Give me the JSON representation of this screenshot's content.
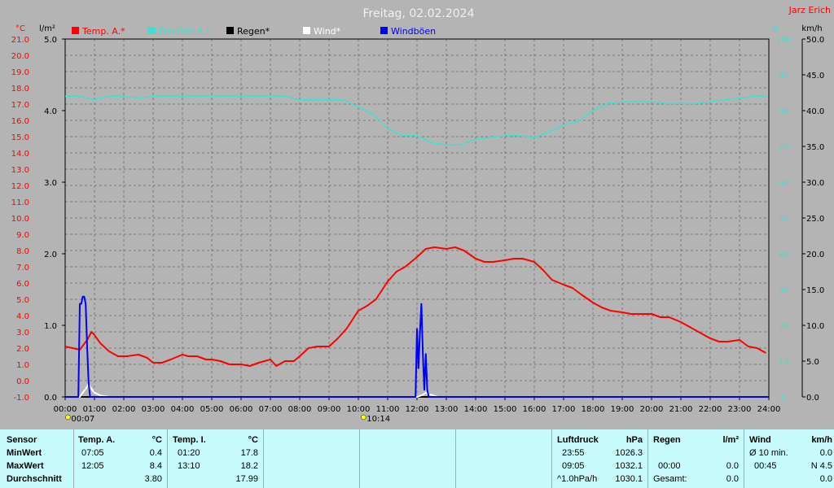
{
  "header": {
    "title": "Freitag, 02.02.2024",
    "owner": "Jarz Erich"
  },
  "colors": {
    "temp": "#ff0000",
    "humidity": "#40e0d0",
    "rain": "#000000",
    "wind": "#ffffff",
    "gust": "#0000ff",
    "left_axis": "#ff0000",
    "hum_axis": "#40e0d0",
    "grid": "#7a7a7a",
    "plot_bg": "#b4b4b4"
  },
  "chart_data": {
    "type": "line",
    "title": "Freitag, 02.02.2024",
    "grid": true,
    "legend_position": "top-left",
    "x_ticks": [
      "00:00",
      "01:00",
      "02:00",
      "03:00",
      "04:00",
      "05:00",
      "06:00",
      "07:00",
      "08:00",
      "09:00",
      "10:00",
      "11:00",
      "12:00",
      "13:00",
      "14:00",
      "15:00",
      "16:00",
      "17:00",
      "18:00",
      "19:00",
      "20:00",
      "21:00",
      "22:00",
      "23:00",
      "24:00"
    ],
    "x_range": [
      0,
      24
    ],
    "axes": {
      "temp": {
        "unit": "°C",
        "range": [
          -1.0,
          21.0
        ],
        "ticks": [
          "-1.0",
          "0.0",
          "1.0",
          "2.0",
          "3.0",
          "4.0",
          "5.0",
          "6.0",
          "7.0",
          "8.0",
          "9.0",
          "10.0",
          "11.0",
          "12.0",
          "13.0",
          "14.0",
          "15.0",
          "16.0",
          "17.0",
          "18.0",
          "19.0",
          "20.0",
          "21.0"
        ]
      },
      "rain": {
        "unit": "l/m²",
        "range": [
          0.0,
          5.0
        ],
        "ticks": [
          "0.0",
          "1.0",
          "2.0",
          "3.0",
          "4.0",
          "5.0"
        ]
      },
      "humidity": {
        "unit": "%",
        "range": [
          0,
          100
        ],
        "ticks": [
          "0",
          "10",
          "20",
          "30",
          "40",
          "50",
          "60",
          "70",
          "80",
          "90",
          "100"
        ]
      },
      "wind": {
        "unit": "km/h",
        "range": [
          0.0,
          50.0
        ],
        "ticks": [
          "0.0",
          "5.0",
          "10.0",
          "15.0",
          "20.0",
          "25.0",
          "30.0",
          "35.0",
          "40.0",
          "45.0",
          "50.0"
        ]
      }
    },
    "series": [
      {
        "name": "Temp. A.*",
        "axis": "temp",
        "color": "#ff0000",
        "x": [
          0,
          0.25,
          0.5,
          0.75,
          0.9,
          1.0,
          1.2,
          1.5,
          1.8,
          2.1,
          2.5,
          2.8,
          3.0,
          3.3,
          3.6,
          4.0,
          4.2,
          4.5,
          4.8,
          5.0,
          5.3,
          5.6,
          6.0,
          6.3,
          6.6,
          7.0,
          7.2,
          7.5,
          7.8,
          8.0,
          8.3,
          8.6,
          9.0,
          9.3,
          9.6,
          10.0,
          10.3,
          10.6,
          11.0,
          11.3,
          11.6,
          12.0,
          12.3,
          12.6,
          13.0,
          13.3,
          13.6,
          14.0,
          14.3,
          14.6,
          15.0,
          15.3,
          15.6,
          16.0,
          16.3,
          16.6,
          17.0,
          17.3,
          17.6,
          18.0,
          18.3,
          18.6,
          19.0,
          19.3,
          19.6,
          20.0,
          20.3,
          20.6,
          21.0,
          21.3,
          21.6,
          22.0,
          22.3,
          22.6,
          23.0,
          23.3,
          23.6,
          23.9
        ],
        "y": [
          2.1,
          2.0,
          1.9,
          2.5,
          3.0,
          2.8,
          2.3,
          1.8,
          1.5,
          1.5,
          1.6,
          1.4,
          1.1,
          1.1,
          1.3,
          1.6,
          1.5,
          1.5,
          1.3,
          1.3,
          1.2,
          1.0,
          1.0,
          0.9,
          1.1,
          1.3,
          0.9,
          1.2,
          1.2,
          1.5,
          2.0,
          2.1,
          2.1,
          2.6,
          3.2,
          4.3,
          4.6,
          5.0,
          6.1,
          6.7,
          7.0,
          7.6,
          8.1,
          8.2,
          8.1,
          8.2,
          8.0,
          7.5,
          7.3,
          7.3,
          7.4,
          7.5,
          7.5,
          7.3,
          6.8,
          6.2,
          5.9,
          5.7,
          5.3,
          4.8,
          4.5,
          4.3,
          4.2,
          4.1,
          4.1,
          4.1,
          3.9,
          3.9,
          3.6,
          3.3,
          3.0,
          2.6,
          2.4,
          2.4,
          2.5,
          2.1,
          2.0,
          1.7
        ]
      },
      {
        "name": "Feuchte A.*",
        "axis": "humidity",
        "color": "#40e0d0",
        "x": [
          0,
          0.5,
          1.0,
          1.5,
          2.0,
          2.5,
          3.0,
          3.5,
          4.0,
          5.0,
          6.0,
          7.0,
          7.5,
          8.0,
          8.5,
          9.0,
          9.5,
          10.0,
          10.5,
          11.0,
          11.5,
          12.0,
          12.5,
          13.0,
          13.5,
          14.0,
          14.5,
          15.0,
          15.5,
          16.0,
          16.5,
          17.0,
          17.5,
          18.0,
          18.5,
          19.0,
          19.5,
          20.0,
          20.5,
          21.0,
          21.5,
          22.0,
          22.5,
          23.0,
          23.5,
          23.9
        ],
        "y": [
          84,
          84,
          83,
          84,
          84,
          83.5,
          84,
          84,
          84,
          84,
          84,
          84,
          84,
          83,
          83,
          83,
          83,
          81,
          79,
          75,
          73,
          73,
          71,
          70.5,
          70.5,
          72,
          72.5,
          73,
          73,
          72.5,
          74,
          76,
          77,
          80,
          82,
          82.5,
          82.5,
          82.5,
          82,
          82,
          82,
          82.5,
          83,
          83.5,
          84,
          84
        ]
      },
      {
        "name": "Regen*",
        "axis": "rain",
        "color": "#000000",
        "x": [
          0,
          24
        ],
        "y": [
          0,
          0
        ]
      },
      {
        "name": "Wind*",
        "axis": "wind",
        "color": "#ffffff",
        "x": [
          0,
          0.5,
          0.6,
          0.7,
          0.8,
          0.9,
          1.0,
          1.2,
          1.5,
          12.0,
          12.2,
          12.3,
          12.4,
          12.5,
          12.7,
          24
        ],
        "y": [
          0,
          0,
          0.6,
          1.1,
          1.8,
          1.1,
          0.6,
          0.2,
          0,
          0,
          0.3,
          0.6,
          0.3,
          0.3,
          0,
          0
        ]
      },
      {
        "name": "Windböen",
        "axis": "wind",
        "color": "#0000ff",
        "x": [
          0,
          0.45,
          0.5,
          0.55,
          0.6,
          0.65,
          0.7,
          0.75,
          0.8,
          0.85,
          1.0,
          11.95,
          12.0,
          12.05,
          12.1,
          12.15,
          12.2,
          12.25,
          12.3,
          12.35,
          12.4,
          12.45,
          12.5,
          24
        ],
        "y": [
          0,
          0,
          13.0,
          13.0,
          14.0,
          14.0,
          13.0,
          7.0,
          2.0,
          0,
          0,
          0,
          9.5,
          4.0,
          9.0,
          13.0,
          6.0,
          1.0,
          6.0,
          1.0,
          0,
          0,
          0,
          0
        ]
      }
    ],
    "annotations": [
      {
        "x": 0.15,
        "label": "00:07"
      },
      {
        "x": 10.23,
        "label": "10:14"
      }
    ]
  },
  "stats": {
    "sensor": {
      "header": "Sensor",
      "rows": [
        "MinWert",
        "MaxWert",
        "Durchschnitt"
      ]
    },
    "temp_a": {
      "header": "Temp. A.",
      "unit": "°C",
      "min_time": "07:05",
      "min_val": "0.4",
      "max_time": "12:05",
      "max_val": "8.4",
      "avg": "3.80"
    },
    "temp_i": {
      "header": "Temp. I.",
      "unit": "°C",
      "min_time": "01:20",
      "min_val": "17.8",
      "max_time": "13:10",
      "max_val": "18.2",
      "avg": "17.99"
    },
    "pressure": {
      "header": "Luftdruck",
      "unit": "hPa",
      "min_time": "23:55",
      "min_val": "1026.3",
      "max_time": "09:05",
      "max_val": "1032.1",
      "trend_label": "^1.0hPa/h",
      "trend_val": "1030.1"
    },
    "rain": {
      "header": "Regen",
      "unit": "l/m²",
      "max_time": "00:00",
      "max_val": "0.0",
      "total_label": "Gesamt:",
      "total_val": "0.0"
    },
    "wind": {
      "header": "Wind",
      "unit": "km/h",
      "avg_label": "Ø 10 min.",
      "avg_val": "0.0",
      "max_time": "00:45",
      "max_val": "N 4.5",
      "last_val": "0.0"
    }
  }
}
